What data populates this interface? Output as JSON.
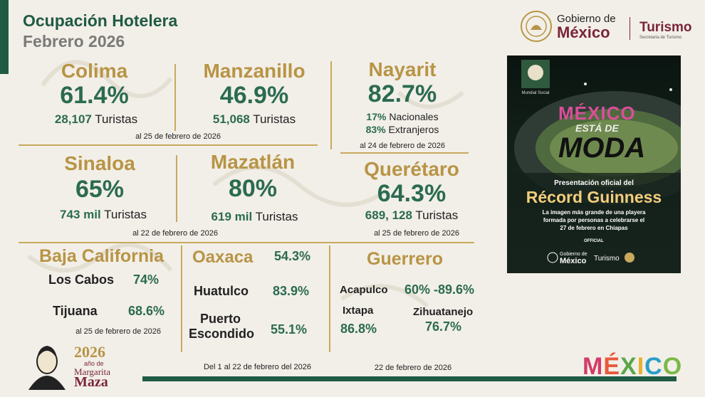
{
  "header": {
    "title": "Ocupación Hotelera",
    "subtitle": "Febrero 2026"
  },
  "gov": {
    "line1": "Gobierno de",
    "line2": "México",
    "turismo": "Turismo",
    "turismo_sub": "Secretaría de Turismo"
  },
  "colima": {
    "name": "Colima",
    "pct": "61.4%",
    "num": "28,107",
    "unit": "Turistas"
  },
  "manzanillo": {
    "name": "Manzanillo",
    "pct": "46.9%",
    "num": "51,068",
    "unit": "Turistas"
  },
  "date_colima": "al 25 de febrero de 2026",
  "nayarit": {
    "name": "Nayarit",
    "pct": "82.7%",
    "nac_pct": "17%",
    "nac": "Nacionales",
    "ext_pct": "83%",
    "ext": "Extranjeros",
    "date": "al 24 de febrero de 2026"
  },
  "sinaloa": {
    "name": "Sinaloa",
    "pct": "65%",
    "num": "743 mil",
    "unit": "Turistas"
  },
  "mazatlan": {
    "name": "Mazatlán",
    "pct": "80%",
    "num": "619 mil",
    "unit": "Turistas"
  },
  "date_sinaloa": "al 22 de febrero de 2026",
  "queretaro": {
    "name": "Querétaro",
    "pct": "64.3%",
    "num": "689, 128",
    "unit": "Turistas",
    "date": "al 25 de febrero de 2026"
  },
  "baja": {
    "name": "Baja California",
    "c1": "Los Cabos",
    "v1": "74%",
    "c2": "Tijuana",
    "v2": "68.6%",
    "date": "al 25 de febrero de 2026"
  },
  "oaxaca": {
    "name": "Oaxaca",
    "pct": "54.3%",
    "c1": "Huatulco",
    "v1": "83.9%",
    "c2a": "Puerto",
    "c2b": "Escondido",
    "v2": "55.1%",
    "date": "Del 1 al 22 de febrero del 2026"
  },
  "guerrero": {
    "name": "Guerrero",
    "c1": "Acapulco",
    "v1": "60% -89.6%",
    "c2": "Ixtapa",
    "v2": "86.8%",
    "c3": "Zihuatanejo",
    "v3": "76.7%",
    "date": "22 de febrero de 2026"
  },
  "poster": {
    "mundial": "Mundial Social",
    "mexico": "MÉXICO",
    "esta_de": "ESTÁ DE",
    "moda": "MODA",
    "pres": "Presentación oficial del",
    "record": "Récord Guinness",
    "desc1": "La imagen más grande de una playera",
    "desc2": "formada por personas a celebrarse el",
    "desc3": "27 de febrero en Chiapas",
    "official": "OFFICIAL",
    "gov1": "Gobierno de",
    "gov2": "México",
    "tur": "Turismo"
  },
  "margarita": {
    "year": "2026",
    "l1": "año de",
    "l2": "Margarita",
    "l3": "Maza"
  },
  "brand": {
    "m": "M",
    "e": "É",
    "x": "X",
    "i": "I",
    "c": "C",
    "o": "O"
  }
}
